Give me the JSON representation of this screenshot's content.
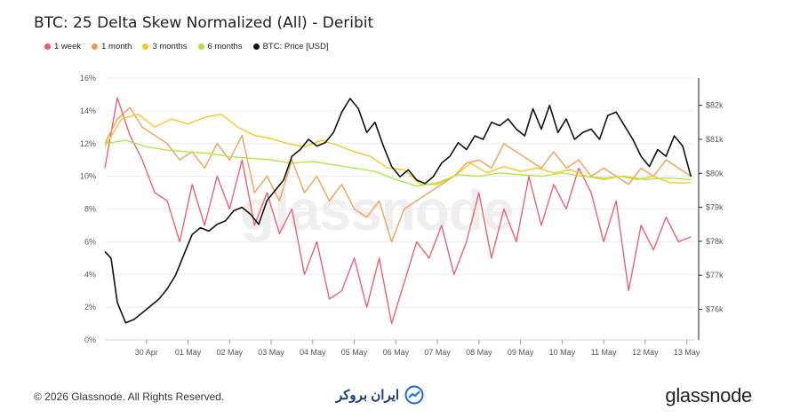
{
  "title": "BTC: 25 Delta Skew Normalized (All) - Deribit",
  "watermark": "glassnode",
  "legend": [
    {
      "label": "1 week",
      "color": "#f2556b"
    },
    {
      "label": "1 month",
      "color": "#f29a4a"
    },
    {
      "label": "3 months",
      "color": "#f5c518"
    },
    {
      "label": "6 months",
      "color": "#a8e63c"
    },
    {
      "label": "BTC: Price [USD]",
      "color": "#111111"
    }
  ],
  "footer": {
    "copyright": "© 2026 Glassnode. All Rights Reserved.",
    "brand_fa": "ایران بروکر",
    "logo": "glassnode"
  },
  "chart_data": {
    "type": "line",
    "x_tick_labels": [
      "30 Apr",
      "01 May",
      "02 May",
      "03 May",
      "04 May",
      "05 May",
      "06 May",
      "07 May",
      "08 May",
      "09 May",
      "10 May",
      "11 May",
      "12 May",
      "13 May"
    ],
    "y_left": {
      "ticks": [
        "0%",
        "2%",
        "4%",
        "6%",
        "8%",
        "10%",
        "12%",
        "14%",
        "16%"
      ],
      "range": [
        0,
        16
      ]
    },
    "y_right": {
      "ticks": [
        "$76k",
        "$77k",
        "$78k",
        "$79k",
        "$80k",
        "$81k",
        "$82k"
      ],
      "range": [
        75.1,
        82.8
      ]
    },
    "grid": "horizontal",
    "x_range": [
      0,
      14.2
    ],
    "series": [
      {
        "name": "1 week",
        "axis": "left",
        "color": "#f2556b",
        "x": [
          0,
          0.3,
          0.6,
          0.9,
          1.2,
          1.5,
          1.8,
          2.1,
          2.4,
          2.7,
          3,
          3.3,
          3.6,
          3.9,
          4.2,
          4.5,
          4.8,
          5.1,
          5.4,
          5.7,
          6,
          6.3,
          6.6,
          6.9,
          7.2,
          7.5,
          7.8,
          8.1,
          8.4,
          8.7,
          9,
          9.3,
          9.6,
          9.9,
          10.2,
          10.5,
          10.8,
          11.1,
          11.4,
          11.7,
          12,
          12.3,
          12.6,
          12.9,
          13.2,
          13.5,
          13.8,
          14.1
        ],
        "values": [
          10.5,
          14.8,
          12.5,
          11,
          9,
          8.5,
          6,
          9.5,
          7,
          10,
          8,
          11,
          7,
          9,
          6.5,
          8,
          4,
          6,
          2.5,
          3,
          5,
          2,
          5,
          1,
          3.5,
          6,
          5,
          7,
          4,
          6,
          9,
          5,
          8,
          6,
          10,
          7,
          9.5,
          8,
          10.5,
          9,
          6,
          8.5,
          3,
          7,
          5.5,
          7.5,
          6,
          6.3
        ]
      },
      {
        "name": "1 month",
        "axis": "left",
        "color": "#f29a4a",
        "x": [
          0,
          0.3,
          0.6,
          0.9,
          1.2,
          1.5,
          1.8,
          2.1,
          2.4,
          2.7,
          3,
          3.3,
          3.6,
          3.9,
          4.2,
          4.5,
          4.8,
          5.1,
          5.4,
          5.7,
          6,
          6.3,
          6.6,
          6.9,
          7.2,
          7.5,
          7.8,
          8.1,
          8.4,
          8.7,
          9,
          9.3,
          9.6,
          9.9,
          10.2,
          10.5,
          10.8,
          11.1,
          11.4,
          11.7,
          12,
          12.3,
          12.6,
          12.9,
          13.2,
          13.5,
          13.8,
          14.1
        ],
        "values": [
          12,
          13.5,
          14.2,
          13,
          12.5,
          12,
          11,
          11.5,
          10.5,
          12,
          11,
          12.5,
          9,
          10,
          8.5,
          11,
          9,
          10,
          8.5,
          9.5,
          8,
          7.5,
          8.5,
          6,
          8,
          8.5,
          9,
          9.5,
          10,
          10.8,
          11,
          10.5,
          12,
          11.5,
          11,
          10.5,
          11.5,
          10.5,
          11,
          10,
          10.5,
          10,
          9.5,
          10.5,
          10,
          11,
          10.5,
          10
        ]
      },
      {
        "name": "3 months",
        "axis": "left",
        "color": "#f5c518",
        "x": [
          0,
          0.4,
          0.8,
          1.2,
          1.6,
          2,
          2.4,
          2.8,
          3.2,
          3.6,
          4,
          4.4,
          4.8,
          5.2,
          5.6,
          6,
          6.4,
          6.8,
          7.2,
          7.6,
          8,
          8.4,
          8.8,
          9.2,
          9.6,
          10,
          10.4,
          10.8,
          11.2,
          11.6,
          12,
          12.4,
          12.8,
          13.2,
          13.6,
          14.1
        ],
        "values": [
          11.8,
          13.5,
          13.8,
          13,
          13.5,
          13.2,
          13.6,
          13.8,
          13,
          12.5,
          12.3,
          12,
          11.8,
          12.2,
          11.9,
          11.5,
          11.2,
          10.5,
          10.4,
          9.5,
          9.5,
          10,
          10.8,
          10.2,
          10.6,
          10.3,
          10.5,
          10.2,
          10.4,
          10,
          9.8,
          10,
          9.8,
          10,
          9.6,
          9.6
        ]
      },
      {
        "name": "6 months",
        "axis": "left",
        "color": "#a8e63c",
        "x": [
          0,
          0.5,
          1,
          1.5,
          2,
          2.5,
          3,
          3.5,
          4,
          4.5,
          5,
          5.5,
          6,
          6.5,
          7,
          7.5,
          8,
          8.5,
          9,
          9.5,
          10,
          10.5,
          11,
          11.5,
          12,
          12.5,
          13,
          13.5,
          14.1
        ],
        "values": [
          12,
          12.2,
          11.8,
          11.6,
          11.5,
          11.4,
          11.2,
          11.1,
          11,
          10.8,
          10.9,
          10.7,
          10.5,
          10.3,
          9.8,
          9.4,
          9.6,
          10.1,
          10,
          10.2,
          10.1,
          10,
          10.2,
          10,
          9.9,
          10,
          9.8,
          9.9,
          9.8
        ]
      },
      {
        "name": "BTC: Price [USD]",
        "axis": "right",
        "color": "#111111",
        "x": [
          0,
          0.15,
          0.3,
          0.5,
          0.7,
          0.9,
          1.1,
          1.3,
          1.5,
          1.7,
          1.9,
          2.1,
          2.3,
          2.5,
          2.7,
          2.9,
          3.1,
          3.3,
          3.5,
          3.7,
          3.9,
          4.1,
          4.3,
          4.5,
          4.7,
          4.9,
          5.1,
          5.3,
          5.5,
          5.7,
          5.9,
          6.1,
          6.3,
          6.5,
          6.7,
          6.9,
          7.1,
          7.3,
          7.5,
          7.7,
          7.9,
          8.1,
          8.3,
          8.5,
          8.7,
          8.9,
          9.1,
          9.3,
          9.5,
          9.7,
          9.9,
          10.1,
          10.3,
          10.5,
          10.7,
          10.9,
          11.1,
          11.3,
          11.5,
          11.7,
          11.9,
          12.1,
          12.3,
          12.5,
          12.7,
          12.9,
          13.1,
          13.3,
          13.5,
          13.7,
          13.9,
          14.1
        ],
        "values": [
          77.7,
          77.5,
          76.2,
          75.6,
          75.7,
          75.9,
          76.1,
          76.3,
          76.6,
          77,
          77.6,
          78.2,
          78.4,
          78.3,
          78.5,
          78.6,
          78.9,
          79,
          78.8,
          78.5,
          79.2,
          79.5,
          79.8,
          80.5,
          80.7,
          81,
          80.8,
          80.9,
          81.2,
          81.8,
          82.2,
          81.9,
          81.2,
          81.5,
          80.8,
          80.2,
          79.9,
          80.1,
          79.8,
          79.7,
          79.9,
          80.3,
          80.5,
          80.9,
          80.7,
          81.1,
          81,
          81.5,
          81.4,
          81.6,
          81.3,
          81.1,
          81.9,
          81.3,
          82,
          81.2,
          81.6,
          81,
          81.2,
          81.3,
          81,
          81.7,
          81.8,
          81.4,
          81,
          80.5,
          80.2,
          80.7,
          80.5,
          81.1,
          80.8,
          79.9
        ]
      }
    ]
  }
}
